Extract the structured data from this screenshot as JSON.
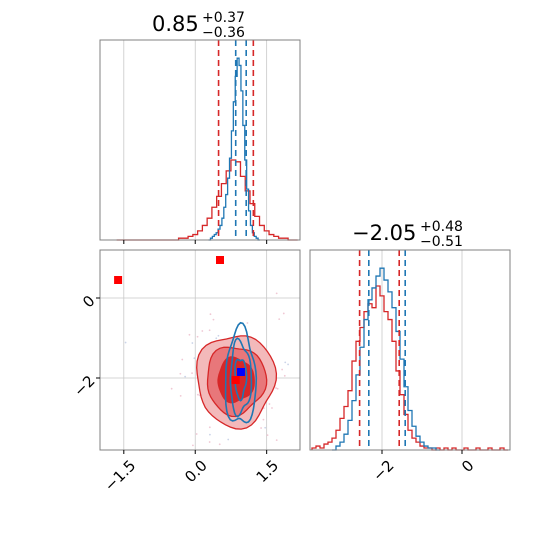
{
  "colors": {
    "red": "#d62728",
    "blue": "#1f77b4",
    "red_fill_dark": "#d62728",
    "red_fill_mid": "#e8777a",
    "red_fill_light": "#f3b9ba"
  },
  "chart_data": [
    {
      "type": "histogram",
      "panel": "top-left",
      "parameter_index": 0,
      "title": {
        "value": "0.85",
        "plus": "+0.37",
        "minus": "−0.36"
      },
      "xlim": [
        -2.0,
        2.2
      ],
      "grid": true,
      "series": [
        {
          "name": "",
          "color": "#d62728",
          "style": "step",
          "bin_width": 0.1,
          "x": [
            -1.6,
            -1.5,
            -1.4,
            -1.3,
            -1.2,
            -1.1,
            -1.0,
            -0.9,
            -0.8,
            -0.7,
            -0.6,
            -0.5,
            -0.4,
            -0.3,
            -0.2,
            -0.1,
            0.0,
            0.1,
            0.2,
            0.3,
            0.4,
            0.5,
            0.6,
            0.7,
            0.8,
            0.9,
            1.0,
            1.1,
            1.2,
            1.3,
            1.4,
            1.5,
            1.6,
            1.7,
            1.8,
            1.9,
            2.0,
            2.1
          ],
          "values": [
            0,
            0,
            0,
            0,
            0,
            0,
            0,
            0,
            0,
            0,
            0,
            0,
            0,
            0.01,
            0.01,
            0.02,
            0.03,
            0.05,
            0.08,
            0.12,
            0.18,
            0.24,
            0.31,
            0.38,
            0.44,
            0.43,
            0.35,
            0.27,
            0.2,
            0.13,
            0.08,
            0.05,
            0.03,
            0.02,
            0.01,
            0.01,
            0,
            0
          ]
        },
        {
          "name": "",
          "color": "#1f77b4",
          "style": "step",
          "bin_width": 0.04,
          "x": [
            0.3,
            0.34,
            0.38,
            0.42,
            0.46,
            0.5,
            0.54,
            0.58,
            0.62,
            0.66,
            0.7,
            0.74,
            0.78,
            0.82,
            0.86,
            0.9,
            0.94,
            0.98,
            1.02,
            1.06,
            1.1,
            1.14,
            1.18,
            1.22,
            1.26,
            1.3,
            1.34
          ],
          "values": [
            0,
            0.01,
            0.02,
            0.03,
            0.04,
            0.06,
            0.08,
            0.12,
            0.18,
            0.25,
            0.34,
            0.45,
            0.6,
            0.76,
            0.9,
            1.0,
            0.96,
            0.82,
            0.63,
            0.44,
            0.28,
            0.16,
            0.08,
            0.04,
            0.02,
            0.01,
            0
          ]
        }
      ],
      "quantile_lines": [
        {
          "x": 0.49,
          "color": "#d62728"
        },
        {
          "x": 0.85,
          "color": "#1f77b4"
        },
        {
          "x": 1.07,
          "color": "#1f77b4"
        },
        {
          "x": 1.22,
          "color": "#d62728"
        }
      ]
    },
    {
      "type": "contour",
      "panel": "bottom-left",
      "xlim": [
        -2.0,
        2.2
      ],
      "ylim": [
        -3.8,
        1.2
      ],
      "xticks": [
        -1.5,
        0.0,
        1.5
      ],
      "xticklabels": [
        "−1.5",
        "0.0",
        "1.5"
      ],
      "yticks": [
        0,
        -2
      ],
      "yticklabels": [
        "0",
        "−2"
      ],
      "grid": true,
      "red_contours": {
        "center": [
          0.85,
          -2.05
        ],
        "levels": [
          {
            "rx": 0.38,
            "ry": 0.55,
            "fill": "#d62728"
          },
          {
            "rx": 0.62,
            "ry": 0.85,
            "fill": "#e8777a"
          },
          {
            "rx": 0.82,
            "ry": 1.15,
            "fill": "#f3b9ba"
          }
        ]
      },
      "blue_contours": {
        "center": [
          0.95,
          -2.0
        ],
        "levels": [
          {
            "rx": 0.12,
            "ry": 0.5
          },
          {
            "rx": 0.22,
            "ry": 0.9
          },
          {
            "rx": 0.32,
            "ry": 1.2
          }
        ]
      },
      "markers": [
        {
          "x": -1.62,
          "y": 0.45,
          "color": "#ff0000",
          "shape": "square"
        },
        {
          "x": 0.52,
          "y": 0.95,
          "color": "#ff0000",
          "shape": "square"
        },
        {
          "x": 0.96,
          "y": -1.85,
          "color": "#0000ff",
          "shape": "square"
        },
        {
          "x": 0.85,
          "y": -2.05,
          "color": "#ff0000",
          "shape": "square"
        }
      ]
    },
    {
      "type": "histogram",
      "panel": "bottom-right",
      "parameter_index": 1,
      "title": {
        "value": "−2.05",
        "plus": "+0.48",
        "minus": "−0.51"
      },
      "xlim": [
        -3.8,
        1.2
      ],
      "xticks": [
        -2,
        0
      ],
      "xticklabels": [
        "−2",
        "0"
      ],
      "grid": true,
      "series": [
        {
          "name": "",
          "color": "#d62728",
          "style": "step",
          "bin_width": 0.1,
          "x": [
            -3.7,
            -3.6,
            -3.5,
            -3.4,
            -3.3,
            -3.2,
            -3.1,
            -3.0,
            -2.9,
            -2.8,
            -2.7,
            -2.6,
            -2.5,
            -2.4,
            -2.3,
            -2.2,
            -2.1,
            -2.0,
            -1.9,
            -1.8,
            -1.7,
            -1.6,
            -1.5,
            -1.4,
            -1.3,
            -1.2,
            -1.1,
            -1.0,
            -0.9,
            -0.8,
            -0.7,
            -0.6,
            -0.5,
            -0.4,
            -0.3,
            -0.2,
            -0.1,
            0.0,
            0.1,
            0.2,
            0.3,
            0.4,
            0.5,
            0.6,
            0.7,
            0.8,
            0.9,
            1.0,
            1.1
          ],
          "values": [
            0.01,
            0.02,
            0.01,
            0.03,
            0.04,
            0.06,
            0.1,
            0.16,
            0.22,
            0.3,
            0.45,
            0.55,
            0.62,
            0.7,
            0.74,
            0.72,
            0.83,
            0.78,
            0.7,
            0.66,
            0.55,
            0.4,
            0.28,
            0.18,
            0.1,
            0.06,
            0.04,
            0.02,
            0.01,
            0.01,
            0,
            0.01,
            0,
            0.01,
            0,
            0.01,
            0,
            0,
            0.01,
            0,
            0,
            0.01,
            0,
            0,
            0.01,
            0,
            0,
            0.01,
            0
          ]
        },
        {
          "name": "",
          "color": "#1f77b4",
          "style": "step",
          "bin_width": 0.1,
          "x": [
            -3.2,
            -3.1,
            -3.0,
            -2.9,
            -2.8,
            -2.7,
            -2.6,
            -2.5,
            -2.4,
            -2.3,
            -2.2,
            -2.1,
            -2.0,
            -1.9,
            -1.8,
            -1.7,
            -1.6,
            -1.5,
            -1.4,
            -1.3,
            -1.2,
            -1.1,
            -1.0,
            -0.9,
            -0.8,
            -0.7,
            -0.6
          ],
          "values": [
            0,
            0.02,
            0.04,
            0.08,
            0.15,
            0.25,
            0.38,
            0.52,
            0.66,
            0.76,
            0.82,
            0.88,
            0.92,
            0.86,
            0.8,
            0.72,
            0.6,
            0.46,
            0.32,
            0.2,
            0.12,
            0.07,
            0.04,
            0.02,
            0.01,
            0.01,
            0
          ]
        }
      ],
      "quantile_lines": [
        {
          "x": -2.56,
          "color": "#d62728"
        },
        {
          "x": -2.33,
          "color": "#1f77b4"
        },
        {
          "x": -1.57,
          "color": "#d62728"
        },
        {
          "x": -1.42,
          "color": "#1f77b4"
        }
      ]
    }
  ]
}
